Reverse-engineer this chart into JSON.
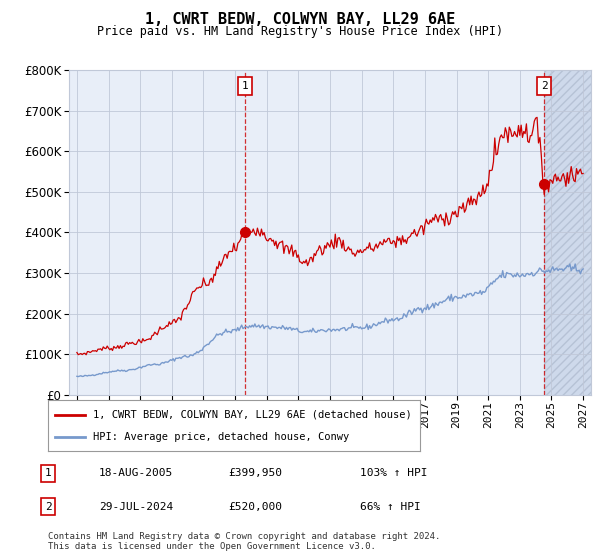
{
  "title": "1, CWRT BEDW, COLWYN BAY, LL29 6AE",
  "subtitle": "Price paid vs. HM Land Registry's House Price Index (HPI)",
  "legend_label_red": "1, CWRT BEDW, COLWYN BAY, LL29 6AE (detached house)",
  "legend_label_blue": "HPI: Average price, detached house, Conwy",
  "sale1_label": "1",
  "sale1_date": "18-AUG-2005",
  "sale1_price": "£399,950",
  "sale1_hpi": "103% ↑ HPI",
  "sale2_label": "2",
  "sale2_date": "29-JUL-2024",
  "sale2_price": "£520,000",
  "sale2_hpi": "66% ↑ HPI",
  "footer": "Contains HM Land Registry data © Crown copyright and database right 2024.\nThis data is licensed under the Open Government Licence v3.0.",
  "ylim": [
    0,
    800000
  ],
  "xlim_start": 1994.5,
  "xlim_end": 2027.5,
  "sale1_x": 2005.625,
  "sale1_y": 399950,
  "sale2_x": 2024.542,
  "sale2_y": 520000,
  "red_color": "#cc0000",
  "blue_color": "#7799cc",
  "chart_bg": "#e8eef8",
  "background_color": "#ffffff",
  "grid_color": "#c0c8d8",
  "hatch_color": "#c8d4e8"
}
